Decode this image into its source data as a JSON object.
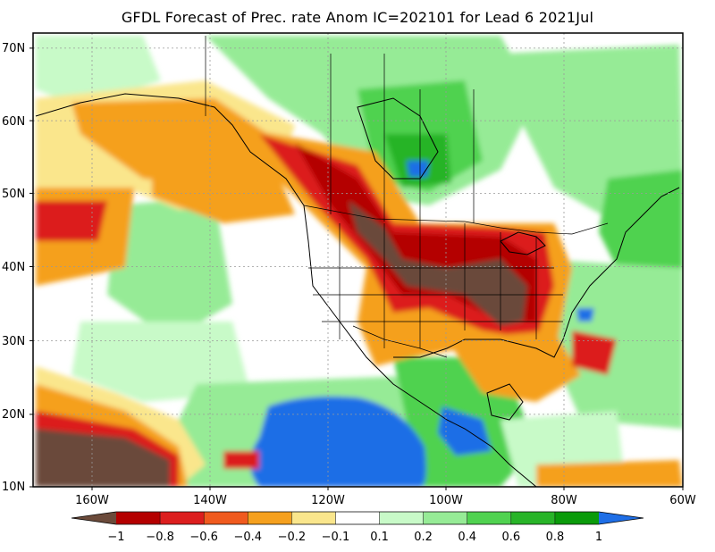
{
  "title": "GFDL Forecast of Prec. rate Anom IC=202101 for Lead 6 2021Jul",
  "map": {
    "lat_labels": [
      "70N",
      "60N",
      "50N",
      "40N",
      "30N",
      "20N",
      "10N"
    ],
    "lon_labels": [
      "160W",
      "140W",
      "120W",
      "100W",
      "80W",
      "60W"
    ],
    "lat_range": [
      10,
      70
    ],
    "lon_range": [
      -170,
      -60
    ]
  },
  "colorbar": {
    "tick_labels": [
      "−1",
      "−0.8",
      "−0.6",
      "−0.4",
      "−0.2",
      "−0.1",
      "0.1",
      "0.2",
      "0.4",
      "0.6",
      "0.8",
      "1"
    ],
    "colors": [
      "#6b4a3a",
      "#b40000",
      "#dc1e1e",
      "#f05a1e",
      "#f5a01e",
      "#fae68c",
      "#ffffff",
      "#c8fac8",
      "#96eb96",
      "#50d250",
      "#28b428",
      "#0a9b0a",
      "#1e6ee6"
    ]
  }
}
